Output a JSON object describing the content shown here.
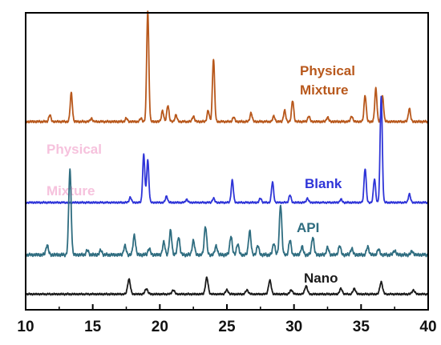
{
  "chart_data": {
    "type": "line",
    "title": "",
    "xlabel": "",
    "ylabel": "",
    "xlim": [
      10,
      40
    ],
    "x_ticks": [
      10,
      15,
      20,
      25,
      30,
      35,
      40
    ],
    "grid": false,
    "legend": "none; series labels placed next to each trace",
    "series": [
      {
        "name": "Physical Mixture",
        "label_lines": [
          "Physical",
          "Mixture"
        ],
        "color": "#b8581c",
        "peaks": [
          [
            11.8,
            6
          ],
          [
            13.4,
            26
          ],
          [
            14.9,
            3
          ],
          [
            17.5,
            3
          ],
          [
            18.6,
            3
          ],
          [
            19.1,
            100
          ],
          [
            20.2,
            10
          ],
          [
            20.6,
            15
          ],
          [
            21.2,
            6
          ],
          [
            22.5,
            5
          ],
          [
            23.6,
            10
          ],
          [
            24.0,
            57
          ],
          [
            25.5,
            4
          ],
          [
            26.8,
            8
          ],
          [
            28.5,
            5
          ],
          [
            29.3,
            10
          ],
          [
            29.9,
            19
          ],
          [
            31.1,
            5
          ],
          [
            32.5,
            4
          ],
          [
            34.3,
            5
          ],
          [
            35.3,
            24
          ],
          [
            36.1,
            30
          ],
          [
            36.6,
            23
          ],
          [
            38.6,
            12
          ]
        ]
      },
      {
        "name": "Blank",
        "color": "#2f35d8",
        "peaks": [
          [
            17.8,
            5
          ],
          [
            18.8,
            45
          ],
          [
            19.1,
            40
          ],
          [
            20.5,
            6
          ],
          [
            22.0,
            3
          ],
          [
            24.0,
            4
          ],
          [
            25.4,
            21
          ],
          [
            27.5,
            4
          ],
          [
            28.4,
            19
          ],
          [
            29.7,
            7
          ],
          [
            31.0,
            4
          ],
          [
            33.5,
            3
          ],
          [
            35.3,
            32
          ],
          [
            36.0,
            22
          ],
          [
            36.5,
            100
          ],
          [
            38.6,
            8
          ]
        ]
      },
      {
        "name": "API",
        "color": "#2f6d80",
        "peaks": [
          [
            11.6,
            11
          ],
          [
            13.3,
            95
          ],
          [
            14.6,
            5
          ],
          [
            15.6,
            5
          ],
          [
            17.4,
            10
          ],
          [
            18.1,
            22
          ],
          [
            19.2,
            7
          ],
          [
            20.3,
            14
          ],
          [
            20.8,
            27
          ],
          [
            21.4,
            20
          ],
          [
            22.5,
            16
          ],
          [
            23.4,
            32
          ],
          [
            24.2,
            10
          ],
          [
            25.3,
            21
          ],
          [
            25.8,
            12
          ],
          [
            26.7,
            27
          ],
          [
            27.3,
            10
          ],
          [
            28.5,
            13
          ],
          [
            29.0,
            56
          ],
          [
            29.7,
            16
          ],
          [
            30.6,
            9
          ],
          [
            31.4,
            20
          ],
          [
            32.5,
            8
          ],
          [
            33.4,
            10
          ],
          [
            34.3,
            7
          ],
          [
            35.5,
            9
          ],
          [
            36.3,
            6
          ],
          [
            37.5,
            5
          ],
          [
            38.8,
            4
          ]
        ]
      },
      {
        "name": "Nano",
        "color": "#1a1a1a",
        "peaks": [
          [
            17.7,
            11
          ],
          [
            19.0,
            4
          ],
          [
            21.0,
            3
          ],
          [
            23.5,
            12
          ],
          [
            25.0,
            3
          ],
          [
            26.5,
            3
          ],
          [
            28.2,
            10
          ],
          [
            29.8,
            3
          ],
          [
            30.9,
            6
          ],
          [
            33.5,
            4
          ],
          [
            34.5,
            4
          ],
          [
            36.5,
            9
          ],
          [
            38.9,
            3
          ]
        ]
      }
    ],
    "background_text": {
      "lines": [
        "Physical",
        "Mixture"
      ],
      "color": "#f6c2dd"
    }
  }
}
